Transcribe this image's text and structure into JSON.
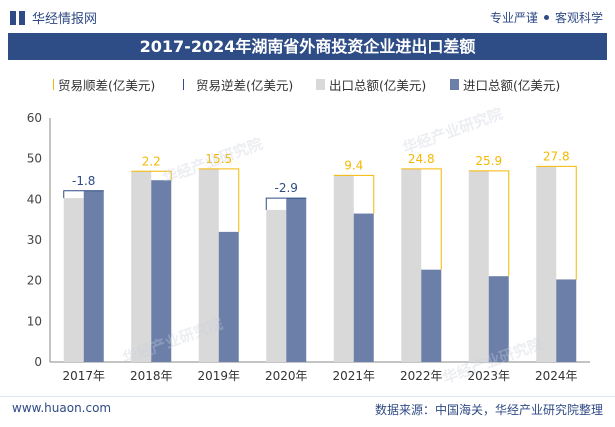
{
  "header": {
    "logo_text": "华经情报网",
    "tagline_left": "专业严谨",
    "tagline_right": "客观科学"
  },
  "watermark": "华经产业研究院",
  "colors": {
    "brand": "#2e4c86",
    "export_bar": "#d9d9d9",
    "import_bar": "#6b7fa8",
    "surplus_line": "#f5b800",
    "deficit_line": "#2e4c86"
  },
  "chart_data": {
    "type": "bar",
    "title": "2017-2024年湖南省外商投资企业进出口差额",
    "categories": [
      "2017年",
      "2018年",
      "2019年",
      "2020年",
      "2021年",
      "2022年",
      "2023年",
      "2024年"
    ],
    "series": [
      {
        "name": "出口总额(亿美元)",
        "values": [
          40.3,
          46.9,
          47.5,
          37.4,
          45.9,
          47.5,
          47.0,
          48.1
        ]
      },
      {
        "name": "进口总额(亿美元)",
        "values": [
          42.1,
          44.7,
          32.0,
          40.3,
          36.5,
          22.7,
          21.1,
          20.3
        ]
      }
    ],
    "balance": {
      "values": [
        -1.8,
        2.2,
        15.5,
        -2.9,
        9.4,
        24.8,
        25.9,
        27.8
      ],
      "surplus_name": "贸易顺差(亿美元)",
      "deficit_name": "贸易逆差(亿美元)"
    },
    "ylim": [
      0,
      60
    ],
    "yticks": [
      0,
      10,
      20,
      30,
      40,
      50,
      60
    ],
    "legend_position": "top"
  },
  "footer": {
    "website": "www.huaon.com",
    "source": "数据来源：中国海关，华经产业研究院整理"
  }
}
